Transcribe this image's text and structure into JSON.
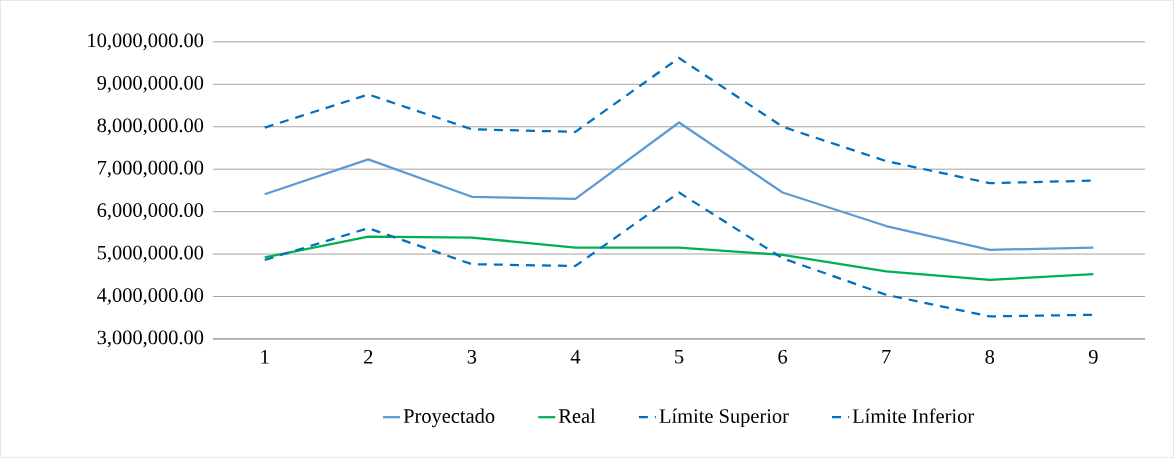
{
  "chart_data": {
    "type": "line",
    "categories": [
      "1",
      "2",
      "3",
      "4",
      "5",
      "6",
      "7",
      "8",
      "9"
    ],
    "series": [
      {
        "name": "Proyectado",
        "color": "#5b9bd5",
        "line_style": "solid",
        "values": [
          6410000,
          7230000,
          6350000,
          6300000,
          8100000,
          6450000,
          5660000,
          5100000,
          5150000
        ]
      },
      {
        "name": "Real",
        "color": "#00b050",
        "line_style": "solid",
        "values": [
          4920000,
          5410000,
          5390000,
          5150000,
          5150000,
          4980000,
          4590000,
          4390000,
          4530000
        ]
      },
      {
        "name": "Límite Superior",
        "color": "#0070c0",
        "marker": "none",
        "line_style": "dashed",
        "values": [
          7980000,
          8760000,
          7940000,
          7880000,
          9620000,
          8000000,
          7190000,
          6670000,
          6730000
        ]
      },
      {
        "name": "Límite Inferior",
        "color": "#0070c0",
        "marker": "none",
        "line_style": "dashed",
        "values": [
          4860000,
          5610000,
          4760000,
          4720000,
          6450000,
          4900000,
          4040000,
          3530000,
          3570000
        ]
      }
    ],
    "ylim": [
      3000000,
      10000000
    ],
    "yticks": [
      {
        "value": 3000000,
        "label": "3,000,000.00"
      },
      {
        "value": 4000000,
        "label": "4,000,000.00"
      },
      {
        "value": 5000000,
        "label": "5,000,000.00"
      },
      {
        "value": 6000000,
        "label": "6,000,000.00"
      },
      {
        "value": 7000000,
        "label": "7,000,000.00"
      },
      {
        "value": 8000000,
        "label": "8,000,000.00"
      },
      {
        "value": 9000000,
        "label": "9,000,000.00"
      },
      {
        "value": 10000000,
        "label": "10,000,000.00"
      }
    ],
    "grid": "y",
    "legend": "bottom"
  }
}
